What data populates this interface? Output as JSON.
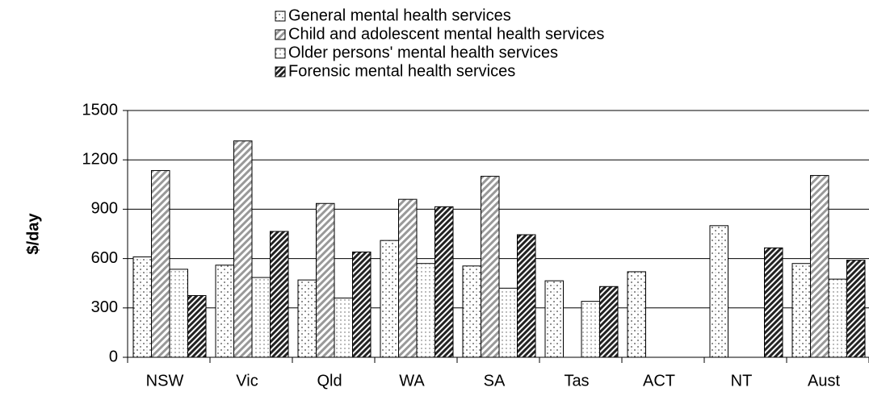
{
  "chart_data": {
    "type": "bar",
    "y_label": "$/day",
    "categories": [
      "NSW",
      "Vic",
      "Qld",
      "WA",
      "SA",
      "Tas",
      "ACT",
      "NT",
      "Aust"
    ],
    "series": [
      {
        "name": "General mental health services",
        "values": [
          610,
          560,
          470,
          710,
          555,
          465,
          520,
          800,
          570
        ]
      },
      {
        "name": "Child and adolescent mental health services",
        "values": [
          1135,
          1315,
          935,
          960,
          1100,
          null,
          null,
          null,
          1105
        ]
      },
      {
        "name": "Older persons' mental health services",
        "values": [
          535,
          485,
          360,
          570,
          420,
          340,
          null,
          null,
          475
        ]
      },
      {
        "name": "Forensic mental health services",
        "values": [
          375,
          765,
          640,
          915,
          745,
          430,
          null,
          665,
          590
        ]
      }
    ],
    "ylim": [
      0,
      1500
    ],
    "yticks": [
      0,
      300,
      600,
      900,
      1200,
      1500
    ],
    "grid": true
  }
}
